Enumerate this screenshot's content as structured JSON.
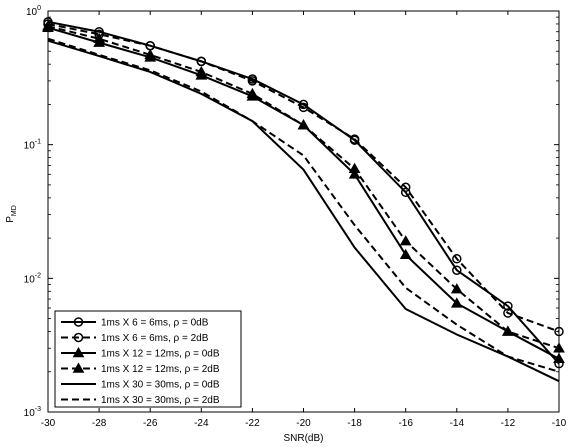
{
  "chart_data": {
    "type": "line",
    "xlabel": "SNR(dB)",
    "ylabel_main": "P",
    "ylabel_sub": "MD",
    "xlim": [
      -30,
      -10
    ],
    "ylim": [
      0.001,
      1
    ],
    "yscale": "log",
    "grid": false,
    "legend_position": "bottom-left",
    "x_ticks": [
      "-30",
      "-28",
      "-26",
      "-24",
      "-22",
      "-20",
      "-18",
      "-16",
      "-14",
      "-12",
      "-10"
    ],
    "y_ticks": [
      {
        "base": "10",
        "exp": "0"
      },
      {
        "base": "10",
        "exp": "-1"
      },
      {
        "base": "10",
        "exp": "-2"
      },
      {
        "base": "10",
        "exp": "-3"
      }
    ],
    "x": [
      -30,
      -28,
      -26,
      -24,
      -22,
      -20,
      -18,
      -16,
      -14,
      -12,
      -10
    ],
    "series": [
      {
        "name": "1ms X 6 = 6ms, ρ = 0dB",
        "style": "solid",
        "marker": "circle-open",
        "values": [
          0.83,
          0.7,
          0.55,
          0.42,
          0.31,
          0.2,
          0.108,
          0.044,
          0.0115,
          0.0062,
          0.0023
        ]
      },
      {
        "name": "1ms X 6 = 6ms, ρ = 2dB",
        "style": "dashed",
        "marker": "circle-open",
        "values": [
          0.8,
          0.67,
          0.55,
          0.42,
          0.3,
          0.19,
          0.11,
          0.048,
          0.014,
          0.0055,
          0.004
        ]
      },
      {
        "name": "1ms X 12 = 12ms, ρ = 0dB",
        "style": "solid",
        "marker": "triangle-filled",
        "values": [
          0.75,
          0.58,
          0.45,
          0.33,
          0.23,
          0.14,
          0.06,
          0.015,
          0.0065,
          0.004,
          0.0025
        ]
      },
      {
        "name": "1ms X 12 = 12ms, ρ = 2dB",
        "style": "dashed",
        "marker": "triangle-filled",
        "values": [
          0.77,
          0.62,
          0.47,
          0.35,
          0.24,
          0.14,
          0.066,
          0.019,
          0.0083,
          0.004,
          0.003
        ]
      },
      {
        "name": "1ms X 30 = 30ms, ρ = 0dB",
        "style": "solid",
        "marker": "none",
        "values": [
          0.6,
          0.46,
          0.35,
          0.24,
          0.15,
          0.065,
          0.017,
          0.0059,
          0.0038,
          0.0026,
          0.0017
        ]
      },
      {
        "name": "1ms X 30 = 30ms, ρ = 2dB",
        "style": "dashed",
        "marker": "none",
        "values": [
          0.62,
          0.47,
          0.36,
          0.25,
          0.15,
          0.083,
          0.025,
          0.0085,
          0.0045,
          0.0026,
          0.002
        ]
      }
    ]
  }
}
